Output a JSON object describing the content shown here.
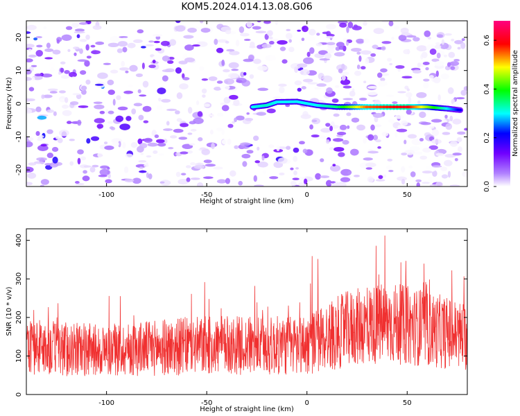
{
  "title": "KOM5.2024.014.13.08.G06",
  "chart_data": [
    {
      "type": "heatmap",
      "name": "spectrogram",
      "xlabel": "Height of straight line (km)",
      "ylabel": "Frequency (Hz)",
      "xlim": [
        -140,
        80
      ],
      "ylim": [
        -25,
        25
      ],
      "xticks": [
        "-100",
        "-50",
        "0",
        "50"
      ],
      "xtick_values": [
        -100,
        -50,
        0,
        50
      ],
      "yticks": [
        "-20",
        "-10",
        "0",
        "10",
        "20"
      ],
      "ytick_values": [
        -20,
        -10,
        0,
        10,
        20
      ],
      "colorbar": {
        "label": "Normalized spectral amplitude",
        "range": [
          0,
          0.68
        ],
        "ticks": [
          "0.0",
          "0.2",
          "0.4",
          "0.6"
        ],
        "tick_values": [
          0,
          0.2,
          0.4,
          0.6
        ],
        "colormap": [
          "#ffffff",
          "#8000ff",
          "#0000ff",
          "#00ffff",
          "#00ff00",
          "#ffff00",
          "#ff0000",
          "#ff0080"
        ]
      },
      "signal_trace": {
        "x": [
          -27,
          -20,
          -15,
          -5,
          5,
          15,
          30,
          50,
          60,
          70,
          77
        ],
        "y": [
          -1,
          -0.5,
          0.5,
          0.6,
          -0.5,
          -1,
          -1,
          -1,
          -1,
          -1.5,
          -2
        ],
        "amplitude": [
          0.3,
          0.32,
          0.3,
          0.3,
          0.3,
          0.35,
          0.55,
          0.6,
          0.45,
          0.3,
          0.2
        ]
      },
      "noise_level": 0.12
    },
    {
      "type": "line",
      "name": "snr",
      "xlabel": "Height of straight line (km)",
      "ylabel": "SNR (10 * v/v)",
      "xlim": [
        -140,
        80
      ],
      "ylim": [
        0,
        430
      ],
      "xticks": [
        "-100",
        "-50",
        "0",
        "50"
      ],
      "xtick_values": [
        -100,
        -50,
        0,
        50
      ],
      "yticks": [
        "0",
        "100",
        "200",
        "300",
        "400"
      ],
      "ytick_values": [
        0,
        100,
        200,
        300,
        400
      ],
      "line_color": "#f03030",
      "series": [
        {
          "x": [
            -140,
            -120,
            -100,
            -80,
            -60,
            -40,
            -20,
            0,
            10,
            20,
            30,
            40,
            50,
            60,
            70,
            80
          ],
          "values": [
            125,
            118,
            115,
            120,
            125,
            128,
            125,
            130,
            150,
            170,
            180,
            185,
            180,
            170,
            160,
            150
          ],
          "spread": [
            80,
            80,
            75,
            80,
            85,
            85,
            85,
            90,
            100,
            110,
            115,
            120,
            115,
            110,
            105,
            100
          ]
        }
      ]
    }
  ]
}
